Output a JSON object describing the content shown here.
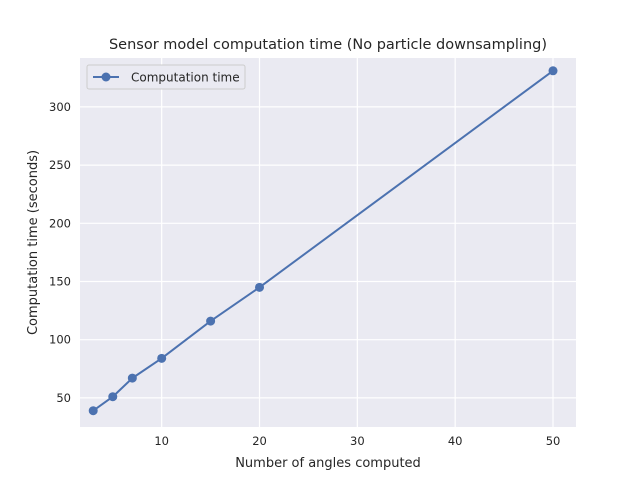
{
  "chart_data": {
    "type": "line",
    "title": "Sensor model computation time (No particle downsampling)",
    "xlabel": "Number of angles computed",
    "ylabel": "Computation time (seconds)",
    "xlim": [
      1.65,
      52.35
    ],
    "ylim": [
      25,
      342
    ],
    "xticks": [
      10,
      20,
      30,
      40,
      50
    ],
    "yticks": [
      50,
      100,
      150,
      200,
      250,
      300
    ],
    "grid": true,
    "legend_position": "top-left",
    "series": [
      {
        "name": "Computation time",
        "color": "#4c72b0",
        "marker": "circle",
        "x": [
          3,
          5,
          7,
          10,
          15,
          20,
          50
        ],
        "y": [
          39,
          51,
          67,
          84,
          116,
          145,
          331
        ]
      }
    ]
  },
  "style": {
    "plot_background": "#eaeaf2",
    "grid_color": "#ffffff",
    "text_color": "#262626"
  }
}
